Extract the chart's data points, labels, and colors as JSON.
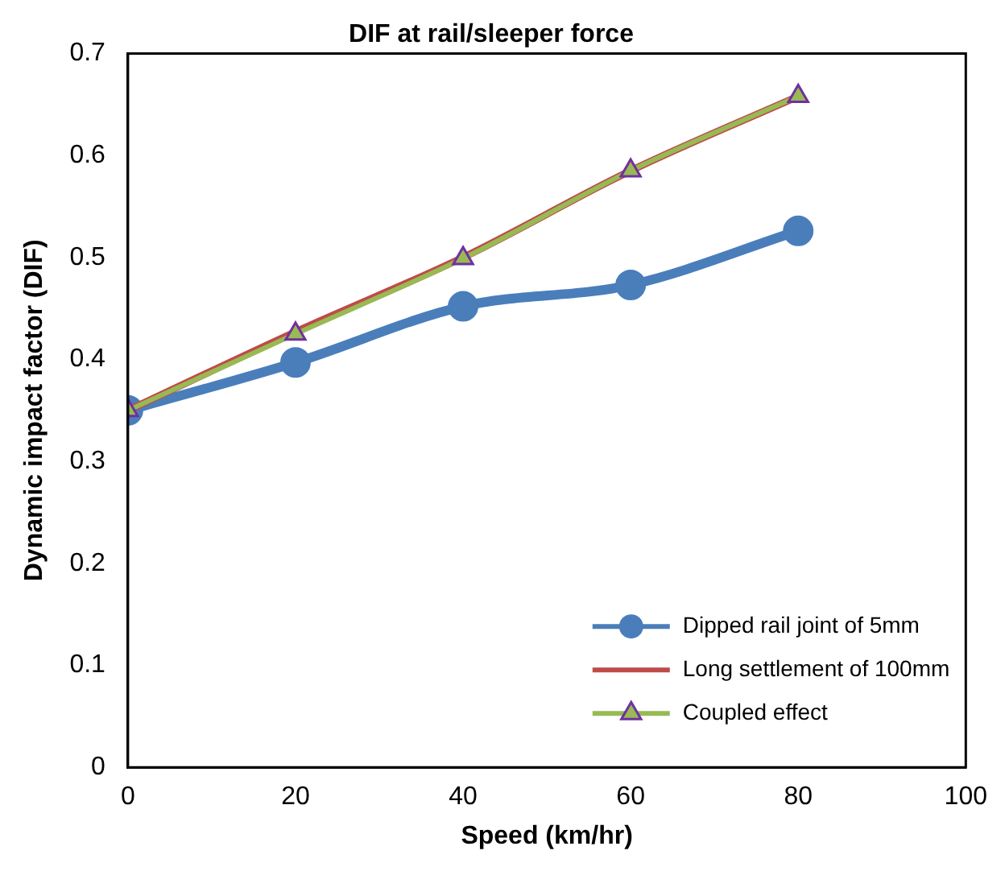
{
  "chart_data": {
    "type": "line",
    "title": "DIF at rail/sleeper force",
    "xlabel": "Speed (km/hr)",
    "ylabel": "Dynamic impact factor (DIF)",
    "x": [
      0,
      20,
      40,
      60,
      80
    ],
    "xlim": [
      0,
      100
    ],
    "xticks": [
      0,
      20,
      40,
      60,
      80,
      100
    ],
    "ylim": [
      0,
      0.7
    ],
    "yticks": [
      0,
      0.1,
      0.2,
      0.3,
      0.4,
      0.5,
      0.6,
      0.7
    ],
    "grid": false,
    "legend": "bottom right",
    "line_style": "solid",
    "series": [
      {
        "name": "Dipped rail joint of 5mm",
        "color": "#4a7ebb",
        "marker": "circle",
        "values": [
          0.35,
          0.397,
          0.452,
          0.473,
          0.526
        ]
      },
      {
        "name": "Long settlement of 100mm",
        "color": "#be4b48",
        "marker": "none",
        "values": [
          0.35,
          0.427,
          0.5,
          0.585,
          0.658
        ]
      },
      {
        "name": "Coupled effect",
        "color": "#98b954",
        "marker": "triangle",
        "values": [
          0.35,
          0.425,
          0.499,
          0.585,
          0.658
        ]
      }
    ]
  }
}
